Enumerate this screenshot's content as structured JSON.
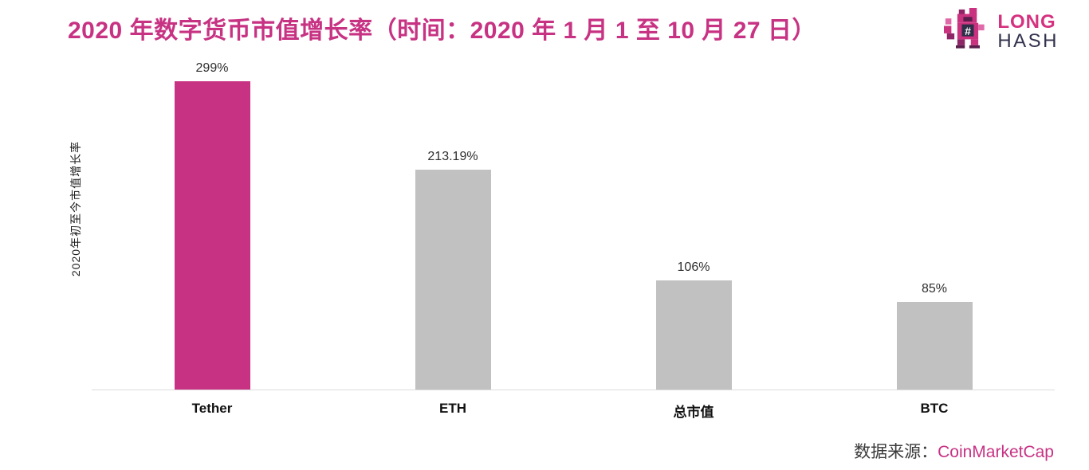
{
  "page": {
    "title": "2020 年数字货币市值增长率（时间：2020 年 1 月 1 至 10 月 27 日）"
  },
  "logo": {
    "line1": "LONG",
    "line2": "HASH",
    "mascot": "pixel-squirrel-mascot-icon",
    "hash_symbol": "#"
  },
  "footer": {
    "source_label": "数据来源：",
    "source_name": "CoinMarketCap"
  },
  "colors": {
    "accent_pink": "#C73283",
    "bar_gray": "#C1C1C1",
    "logo_navy": "#32324E",
    "axis_line": "#DCDCDC"
  },
  "chart_data": {
    "type": "bar",
    "title": "2020 年数字货币市值增长率（时间：2020 年 1 月 1 至 10 月 27 日）",
    "categories": [
      "Tether",
      "ETH",
      "总市值",
      "BTC"
    ],
    "values": [
      299,
      213.19,
      106,
      85
    ],
    "value_labels": [
      "299%",
      "213.19%",
      "106%",
      "85%"
    ],
    "bar_colors": [
      "#C73283",
      "#C1C1C1",
      "#C1C1C1",
      "#C1C1C1"
    ],
    "xlabel": "",
    "ylabel": "2020年初至今市值增长率",
    "ylim": [
      0,
      310
    ],
    "grid": false,
    "legend": "none",
    "y_axis_ticks_visible": false
  }
}
